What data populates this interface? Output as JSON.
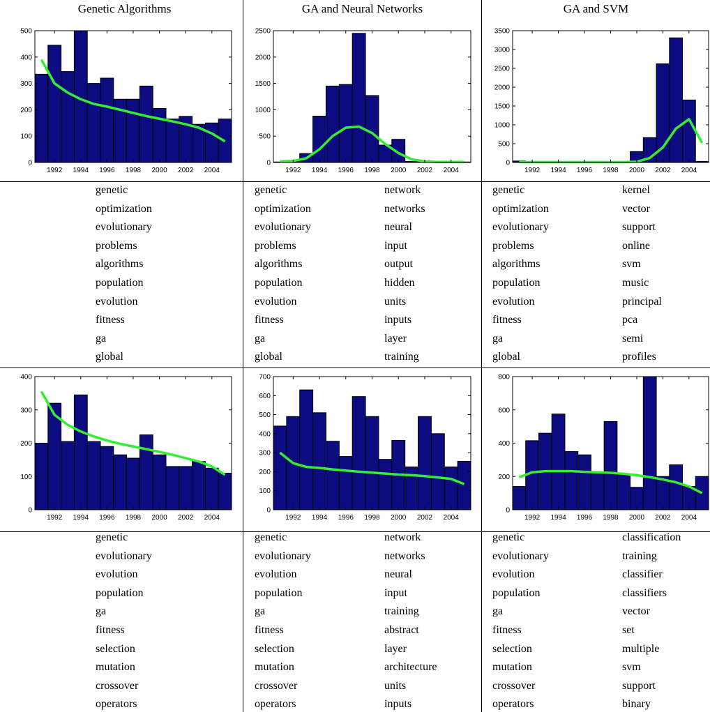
{
  "titles": [
    "Genetic Algorithms",
    "GA and Neural Networks",
    "GA and SVM"
  ],
  "chart_data": [
    {
      "type": "bar",
      "title": "Genetic Algorithms",
      "row": 0,
      "col": 0,
      "x": [
        1991,
        1992,
        1993,
        1994,
        1995,
        1996,
        1997,
        1998,
        1999,
        2000,
        2001,
        2002,
        2003,
        2004,
        2005
      ],
      "values": [
        335,
        445,
        345,
        500,
        300,
        320,
        240,
        240,
        290,
        205,
        165,
        175,
        145,
        150,
        165
      ],
      "trend": [
        390,
        300,
        265,
        240,
        222,
        212,
        200,
        188,
        176,
        166,
        156,
        145,
        132,
        110,
        80
      ],
      "ylim": [
        0,
        500
      ],
      "yticks": [
        0,
        100,
        200,
        300,
        400,
        500
      ],
      "xticks": [
        1992,
        1994,
        1996,
        1998,
        2000,
        2002,
        2004
      ],
      "xlim": [
        1990.5,
        2005.5
      ]
    },
    {
      "type": "bar",
      "title": "GA and Neural Networks",
      "row": 0,
      "col": 1,
      "x": [
        1991,
        1992,
        1993,
        1994,
        1995,
        1996,
        1997,
        1998,
        1999,
        2000,
        2001,
        2002,
        2003,
        2004,
        2005
      ],
      "values": [
        10,
        30,
        170,
        880,
        1450,
        1480,
        2450,
        1270,
        330,
        440,
        20,
        10,
        10,
        10,
        10
      ],
      "trend": [
        20,
        30,
        80,
        250,
        500,
        660,
        680,
        560,
        350,
        180,
        60,
        20,
        10,
        10,
        10
      ],
      "ylim": [
        0,
        2500
      ],
      "yticks": [
        0,
        500,
        1000,
        1500,
        2000,
        2500
      ],
      "xticks": [
        1992,
        1994,
        1996,
        1998,
        2000,
        2002,
        2004
      ],
      "xlim": [
        1990.5,
        2005.5
      ]
    },
    {
      "type": "bar",
      "title": "GA and SVM",
      "row": 0,
      "col": 2,
      "x": [
        1991,
        1992,
        1993,
        1994,
        1995,
        1996,
        1997,
        1998,
        1999,
        2000,
        2001,
        2002,
        2003,
        2004,
        2005
      ],
      "values": [
        40,
        10,
        10,
        10,
        10,
        10,
        10,
        10,
        10,
        290,
        660,
        2620,
        3310,
        1660,
        30
      ],
      "trend": [
        10,
        10,
        10,
        10,
        10,
        10,
        10,
        10,
        10,
        20,
        120,
        400,
        900,
        1150,
        520
      ],
      "ylim": [
        0,
        3500
      ],
      "yticks": [
        0,
        500,
        1000,
        1500,
        2000,
        2500,
        3000,
        3500
      ],
      "xticks": [
        1992,
        1994,
        1996,
        1998,
        2000,
        2002,
        2004
      ],
      "xlim": [
        1990.5,
        2005.5
      ]
    },
    {
      "type": "bar",
      "row": 1,
      "col": 0,
      "x": [
        1991,
        1992,
        1993,
        1994,
        1995,
        1996,
        1997,
        1998,
        1999,
        2000,
        2001,
        2002,
        2003,
        2004,
        2005
      ],
      "values": [
        200,
        320,
        205,
        345,
        205,
        190,
        165,
        155,
        225,
        165,
        130,
        130,
        145,
        125,
        110
      ],
      "trend": [
        355,
        285,
        255,
        235,
        220,
        208,
        198,
        190,
        182,
        174,
        165,
        155,
        145,
        130,
        105
      ],
      "ylim": [
        0,
        400
      ],
      "yticks": [
        0,
        100,
        200,
        300,
        400
      ],
      "xticks": [
        1992,
        1994,
        1996,
        1998,
        2000,
        2002,
        2004
      ],
      "xlim": [
        1990.5,
        2005.5
      ]
    },
    {
      "type": "bar",
      "row": 1,
      "col": 1,
      "x": [
        1991,
        1992,
        1993,
        1994,
        1995,
        1996,
        1997,
        1998,
        1999,
        2000,
        2001,
        2002,
        2003,
        2004,
        2005
      ],
      "values": [
        440,
        490,
        630,
        510,
        360,
        280,
        595,
        490,
        265,
        365,
        225,
        490,
        400,
        225,
        255
      ],
      "trend": [
        300,
        245,
        225,
        220,
        212,
        206,
        200,
        195,
        190,
        185,
        182,
        177,
        170,
        162,
        135
      ],
      "ylim": [
        0,
        700
      ],
      "yticks": [
        0,
        100,
        200,
        300,
        400,
        500,
        600,
        700
      ],
      "xticks": [
        1992,
        1994,
        1996,
        1998,
        2000,
        2002,
        2004
      ],
      "xlim": [
        1990.5,
        2005.5
      ]
    },
    {
      "type": "bar",
      "row": 1,
      "col": 2,
      "x": [
        1991,
        1992,
        1993,
        1994,
        1995,
        1996,
        1997,
        1998,
        1999,
        2000,
        2001,
        2002,
        2003,
        2004,
        2005
      ],
      "values": [
        140,
        415,
        460,
        575,
        350,
        330,
        220,
        530,
        210,
        135,
        800,
        200,
        270,
        140,
        200
      ],
      "trend": [
        195,
        225,
        232,
        232,
        232,
        228,
        225,
        222,
        216,
        208,
        196,
        182,
        165,
        140,
        100
      ],
      "ylim": [
        0,
        800
      ],
      "yticks": [
        0,
        200,
        400,
        600,
        800
      ],
      "xticks": [
        1992,
        1994,
        1996,
        1998,
        2000,
        2002,
        2004
      ],
      "xlim": [
        1990.5,
        2005.5
      ]
    }
  ],
  "word_lists": [
    {
      "row": 0,
      "col": 0,
      "cols": [
        [
          "genetic",
          "optimization",
          "evolutionary",
          "problems",
          "algorithms",
          "population",
          "evolution",
          "fitness",
          "ga",
          "global"
        ]
      ]
    },
    {
      "row": 0,
      "col": 1,
      "cols": [
        [
          "genetic",
          "optimization",
          "evolutionary",
          "problems",
          "algorithms",
          "population",
          "evolution",
          "fitness",
          "ga",
          "global"
        ],
        [
          "network",
          "networks",
          "neural",
          "input",
          "output",
          "hidden",
          "units",
          "inputs",
          "layer",
          "training"
        ]
      ]
    },
    {
      "row": 0,
      "col": 2,
      "cols": [
        [
          "genetic",
          "optimization",
          "evolutionary",
          "problems",
          "algorithms",
          "population",
          "evolution",
          "fitness",
          "ga",
          "global"
        ],
        [
          "kernel",
          "vector",
          "support",
          "online",
          "svm",
          "music",
          "principal",
          "pca",
          "semi",
          "profiles"
        ]
      ]
    },
    {
      "row": 1,
      "col": 0,
      "cols": [
        [
          "genetic",
          "evolutionary",
          "evolution",
          "population",
          "ga",
          "fitness",
          "selection",
          "mutation",
          "crossover",
          "operators"
        ]
      ]
    },
    {
      "row": 1,
      "col": 1,
      "cols": [
        [
          "genetic",
          "evolutionary",
          "evolution",
          "population",
          "ga",
          "fitness",
          "selection",
          "mutation",
          "crossover",
          "operators"
        ],
        [
          "network",
          "networks",
          "neural",
          "input",
          "training",
          "abstract",
          "layer",
          "architecture",
          "units",
          "inputs"
        ]
      ]
    },
    {
      "row": 1,
      "col": 2,
      "cols": [
        [
          "genetic",
          "evolutionary",
          "evolution",
          "population",
          "ga",
          "fitness",
          "selection",
          "mutation",
          "crossover",
          "operators"
        ],
        [
          "classification",
          "training",
          "classifier",
          "classifiers",
          "vector",
          "set",
          "multiple",
          "svm",
          "support",
          "binary"
        ]
      ]
    }
  ],
  "colors": {
    "bar": "#0c0c80",
    "trend": "#33ee33",
    "grid": "#000000"
  }
}
